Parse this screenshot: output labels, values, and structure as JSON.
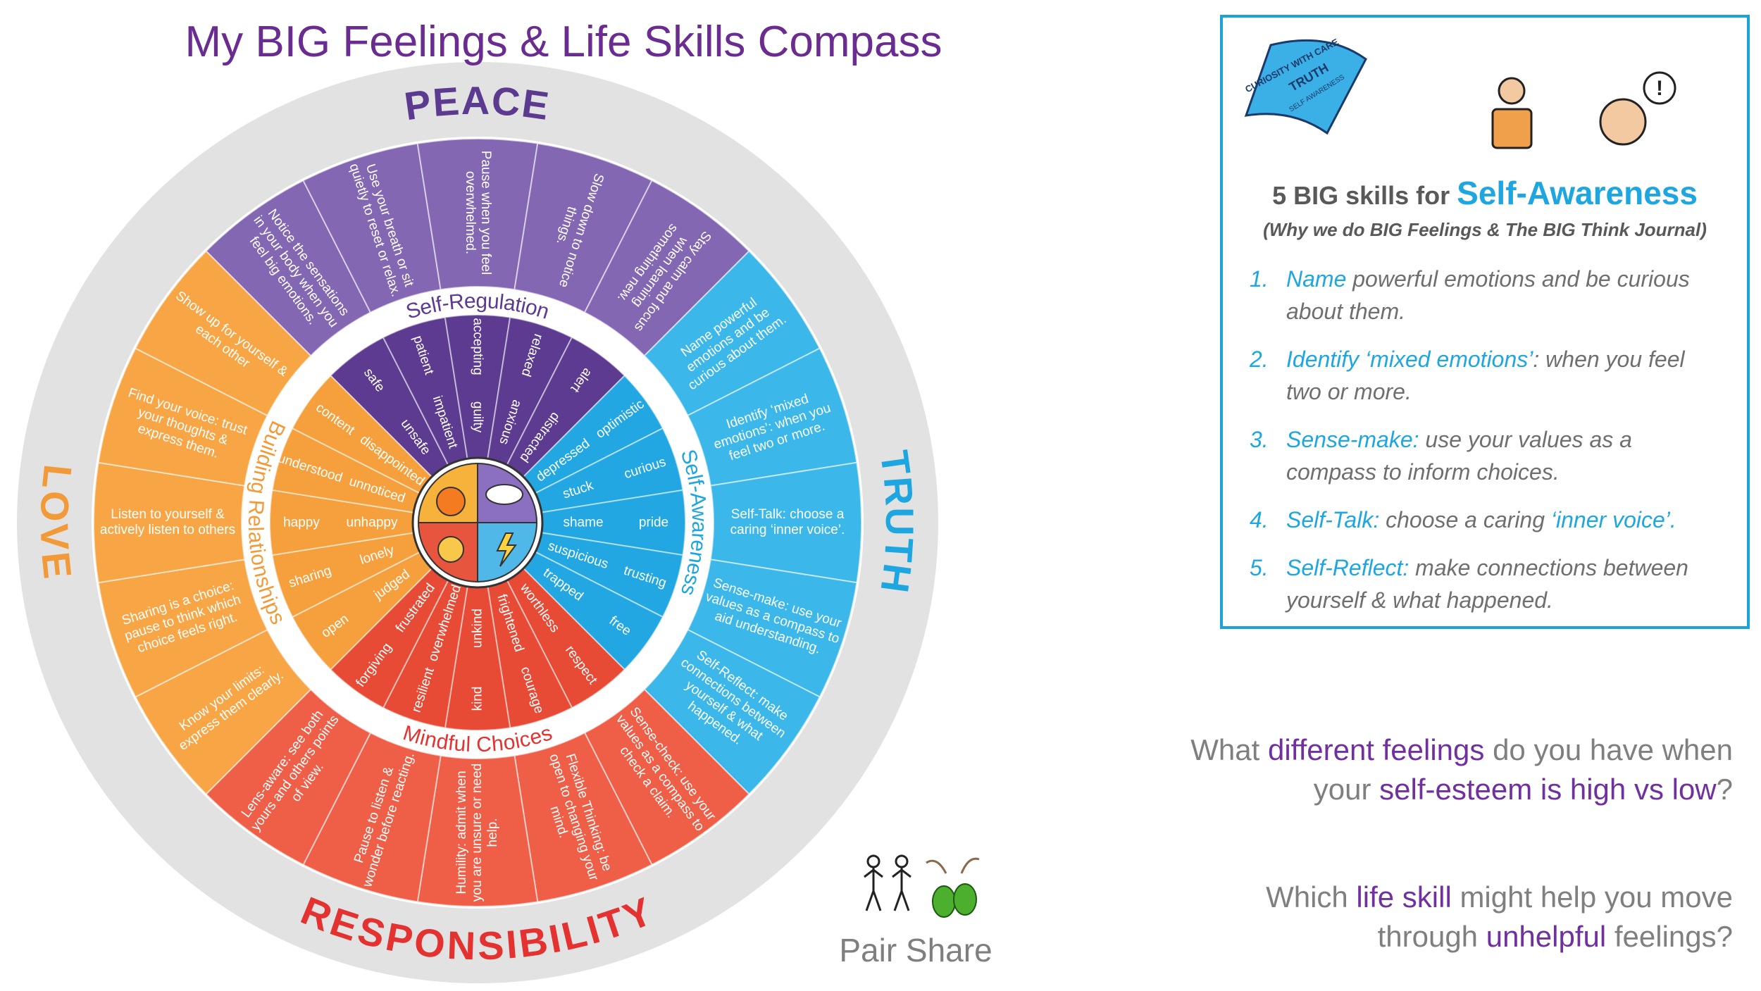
{
  "title": "My BIG Feelings & Life Skills Compass",
  "wheel": {
    "quadrants": [
      {
        "name": "PEACE",
        "skill": "Self-Regulation",
        "color": "#8467b3",
        "inner_color": "#5d3b91",
        "label_color": "#5b3a8f",
        "tips": [
          "Notice the sensations in your body when you feel big emotions.",
          "Use your breath or sit quietly to reset or relax.",
          "Pause when you feel overwhelmed.",
          "Slow down to notice things.",
          "Stay calm and focus when learning something new."
        ],
        "feelings": [
          {
            "positive": "safe",
            "negative": "unsafe"
          },
          {
            "positive": "patient",
            "negative": "impatient"
          },
          {
            "positive": "accepting",
            "negative": "guilty"
          },
          {
            "positive": "relaxed",
            "negative": "anxious"
          },
          {
            "positive": "alert",
            "negative": "distracted"
          }
        ]
      },
      {
        "name": "TRUTH",
        "skill": "Self-Awareness",
        "color": "#3bb7ea",
        "inner_color": "#22a7e2",
        "label_color": "#1ea6e0",
        "tips": [
          "Name powerful emotions and be curious about them.",
          "Identify ‘mixed emotions’: when you feel two or more.",
          "Self-Talk: choose a caring ‘inner voice’.",
          "Sense-make: use your values as a compass to aid understanding.",
          "Self-Reflect: make connections between yourself & what happened."
        ],
        "feelings": [
          {
            "positive": "optimistic",
            "negative": "depressed"
          },
          {
            "positive": "curious",
            "negative": "stuck"
          },
          {
            "positive": "pride",
            "negative": "shame"
          },
          {
            "positive": "trusting",
            "negative": "suspicious"
          },
          {
            "positive": "free",
            "negative": "trapped"
          }
        ]
      },
      {
        "name": "RESPONSIBILITY",
        "skill": "Mindful Choices",
        "color": "#ef5e47",
        "inner_color": "#e84b35",
        "label_color": "#e3322f",
        "tips": [
          "Sense-check: use your values as a compass to check a claim.",
          "Flexible Thinking: be open to changing your mind.",
          "Humility: admit when you are unsure or need help.",
          "Pause to listen & wonder before reacting.",
          "Lens-aware: see both yours and others points of view."
        ],
        "feelings": [
          {
            "positive": "respect",
            "negative": "worthless"
          },
          {
            "positive": "courage",
            "negative": "frightened"
          },
          {
            "positive": "kind",
            "negative": "unkind"
          },
          {
            "positive": "resilient",
            "negative": "overwhelmed"
          },
          {
            "positive": "forgiving",
            "negative": "frustrated"
          }
        ]
      },
      {
        "name": "LOVE",
        "skill": "Building Relationships",
        "color": "#f8a546",
        "inner_color": "#f5a03d",
        "label_color": "#f29a38",
        "tips": [
          "Know your limits: express them clearly.",
          "Sharing is a choice: pause to think which choice feels right.",
          "Listen to yourself & actively listen to others",
          "Find your voice: trust your thoughts & express them.",
          "Show up for yourself & each other"
        ],
        "feelings": [
          {
            "positive": "open",
            "negative": "judged"
          },
          {
            "positive": "sharing",
            "negative": "lonely"
          },
          {
            "positive": "happy",
            "negative": "unhappy"
          },
          {
            "positive": "understood",
            "negative": "unnoticed"
          },
          {
            "positive": "content",
            "negative": "disappointed"
          }
        ]
      }
    ]
  },
  "panel": {
    "icon_texts": [
      "CURIOSITY WITH CARE",
      "TRUTH",
      "SELF AWARENESS"
    ],
    "thought_mark": "!",
    "heading_lead": "5 BIG skills for",
    "heading_focus": "Self-Awareness",
    "subtitle": "(Why we do BIG Feelings & The BIG Think Journal)",
    "skills": [
      {
        "number": "1.",
        "parts": [
          {
            "text": "Name",
            "emphasis": true
          },
          {
            "text": " powerful emotions and be curious about them."
          }
        ]
      },
      {
        "number": "2.",
        "parts": [
          {
            "text": "Identify ‘mixed emotions’",
            "emphasis": true
          },
          {
            "text": ": when you feel two or more."
          }
        ]
      },
      {
        "number": "3.",
        "parts": [
          {
            "text": "Sense-make:",
            "emphasis": true
          },
          {
            "text": " use your values as a compass to inform choices."
          }
        ]
      },
      {
        "number": "4.",
        "parts": [
          {
            "text": "Self-Talk:",
            "emphasis": true
          },
          {
            "text": " choose a caring "
          },
          {
            "text": "‘inner voice’.",
            "emphasis": true
          }
        ]
      },
      {
        "number": "5.",
        "parts": [
          {
            "text": "Self-Reflect:",
            "emphasis": true
          },
          {
            "text": " make connections between yourself & what happened."
          }
        ]
      }
    ]
  },
  "questions": [
    [
      [
        {
          "text": "What "
        },
        {
          "text": "different feelings",
          "emphasis": true
        },
        {
          "text": " do you have when"
        }
      ],
      [
        {
          "text": "your "
        },
        {
          "text": "self-esteem is high vs low",
          "emphasis": true
        },
        {
          "text": "?"
        }
      ]
    ],
    [
      [
        {
          "text": "Which "
        },
        {
          "text": "life skill",
          "emphasis": true
        },
        {
          "text": " might help you move"
        }
      ],
      [
        {
          "text": "through "
        },
        {
          "text": "unhelpful",
          "emphasis": true
        },
        {
          "text": " feelings?"
        }
      ]
    ]
  ],
  "pair_share": "Pair Share"
}
